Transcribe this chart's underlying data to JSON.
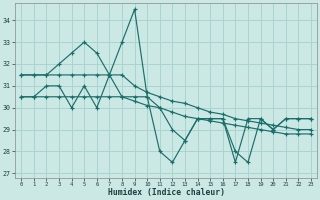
{
  "xlabel": "Humidex (Indice chaleur)",
  "bg_color": "#cce8e5",
  "grid_color": "#a8d4d0",
  "line_color": "#1a6e6a",
  "xlim": [
    -0.5,
    23.5
  ],
  "ylim": [
    26.8,
    34.8
  ],
  "yticks": [
    27,
    28,
    29,
    30,
    31,
    32,
    33,
    34
  ],
  "xticks": [
    0,
    1,
    2,
    3,
    4,
    5,
    6,
    7,
    8,
    9,
    10,
    11,
    12,
    13,
    14,
    15,
    16,
    17,
    18,
    19,
    20,
    21,
    22,
    23
  ],
  "series": [
    [
      31.5,
      31.5,
      31.5,
      32.0,
      32.5,
      33.0,
      32.5,
      31.5,
      33.0,
      34.5,
      30.5,
      28.0,
      27.5,
      28.5,
      29.5,
      29.5,
      29.5,
      27.5,
      29.5,
      29.5,
      29.0,
      29.5,
      29.5,
      29.5
    ],
    [
      31.5,
      31.5,
      31.5,
      31.5,
      31.5,
      31.5,
      31.5,
      31.5,
      31.5,
      31.0,
      30.7,
      30.5,
      30.3,
      30.2,
      30.0,
      29.8,
      29.7,
      29.5,
      29.4,
      29.3,
      29.2,
      29.1,
      29.0,
      29.0
    ],
    [
      30.5,
      30.5,
      30.5,
      30.5,
      30.5,
      30.5,
      30.5,
      30.5,
      30.5,
      30.3,
      30.1,
      30.0,
      29.8,
      29.6,
      29.5,
      29.4,
      29.3,
      29.2,
      29.1,
      29.0,
      28.9,
      28.8,
      28.8,
      28.8
    ],
    [
      30.5,
      30.5,
      31.0,
      31.0,
      30.0,
      31.0,
      30.0,
      31.5,
      30.5,
      30.5,
      30.5,
      30.0,
      29.0,
      28.5,
      29.5,
      29.5,
      29.5,
      28.0,
      27.5,
      29.5,
      29.0,
      29.5,
      29.5,
      29.5
    ]
  ]
}
